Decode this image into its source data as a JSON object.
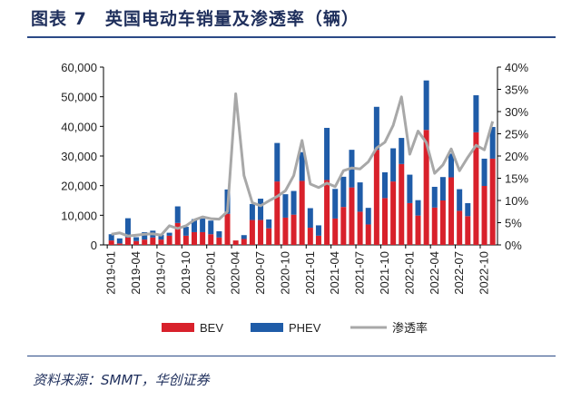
{
  "title": "图表 7　英国电动车销量及渗透率（辆）",
  "source": "资料来源：SMMT，华创证券",
  "colors": {
    "BEV": "#d8212b",
    "PHEV": "#1f5ca8",
    "rate": "#a8a8a8"
  },
  "chart_data": {
    "type": "bar",
    "stacked": true,
    "title": "英国电动车销量及渗透率（辆）",
    "x": [
      "2019-01",
      "2019-02",
      "2019-03",
      "2019-04",
      "2019-05",
      "2019-06",
      "2019-07",
      "2019-08",
      "2019-09",
      "2019-10",
      "2019-11",
      "2019-12",
      "2020-01",
      "2020-02",
      "2020-03",
      "2020-04",
      "2020-05",
      "2020-06",
      "2020-07",
      "2020-08",
      "2020-09",
      "2020-10",
      "2020-11",
      "2020-12",
      "2021-01",
      "2021-02",
      "2021-03",
      "2021-04",
      "2021-05",
      "2021-06",
      "2021-07",
      "2021-08",
      "2021-09",
      "2021-10",
      "2021-11",
      "2021-12",
      "2022-01",
      "2022-02",
      "2022-03",
      "2022-04",
      "2022-05",
      "2022-06",
      "2022-07",
      "2022-08",
      "2022-09",
      "2022-10",
      "2022-11"
    ],
    "x_tick_labels": [
      "2019-01",
      "2019-04",
      "2019-07",
      "2019-10",
      "2020-01",
      "2020-04",
      "2020-07",
      "2020-10",
      "2021-01",
      "2021-04",
      "2021-07",
      "2021-10",
      "2022-01",
      "2022-04",
      "2022-07",
      "2022-10"
    ],
    "series": [
      {
        "name": "BEV",
        "axis": "left",
        "values": [
          1500,
          500,
          2500,
          1300,
          1800,
          2500,
          1800,
          3100,
          7400,
          3100,
          4300,
          4300,
          3600,
          2500,
          10500,
          1500,
          2000,
          8400,
          8400,
          5600,
          21400,
          9200,
          10200,
          21600,
          5800,
          3100,
          21900,
          8900,
          12800,
          19400,
          11200,
          6900,
          32100,
          15800,
          21400,
          27300,
          14100,
          9900,
          38800,
          12600,
          15000,
          22800,
          11500,
          9700,
          38000,
          19900,
          29100
        ]
      },
      {
        "name": "PHEV",
        "axis": "left",
        "values": [
          2100,
          1700,
          6500,
          1300,
          2500,
          2300,
          1600,
          1000,
          5600,
          3000,
          4400,
          4600,
          4600,
          2100,
          8200,
          0,
          1300,
          5400,
          7200,
          3000,
          13000,
          7900,
          8000,
          9700,
          6600,
          3500,
          17600,
          10000,
          10200,
          12700,
          9900,
          5600,
          14500,
          8700,
          11200,
          8800,
          9600,
          5200,
          16700,
          7000,
          7900,
          8000,
          7300,
          4400,
          12500,
          9200,
          10700
        ]
      },
      {
        "name": "渗透率",
        "type": "line",
        "axis": "right",
        "values": [
          2.4,
          2.7,
          2.0,
          2.2,
          2.4,
          2.5,
          2.2,
          4.3,
          3.7,
          4.3,
          5.6,
          6.3,
          5.9,
          5.8,
          7.5,
          34,
          15.6,
          9.5,
          8.8,
          9.9,
          10.9,
          12.2,
          15.6,
          23.5,
          13.7,
          12.9,
          13.9,
          13.1,
          16.7,
          17.3,
          17.1,
          18.7,
          21.8,
          23.1,
          26.9,
          33.3,
          20.4,
          25.6,
          23.0,
          16.1,
          18.0,
          21.6,
          16.7,
          19.7,
          22.4,
          21.4,
          27.8
        ]
      }
    ],
    "ylim": [
      0,
      60000
    ],
    "y_ticks": [
      "0",
      "10,000",
      "20,000",
      "30,000",
      "40,000",
      "50,000",
      "60,000"
    ],
    "y2lim": [
      0,
      40
    ],
    "y2_ticks": [
      "0%",
      "5%",
      "10%",
      "15%",
      "20%",
      "25%",
      "30%",
      "35%",
      "40%"
    ],
    "legend": {
      "position": "bottom",
      "entries": [
        "BEV",
        "PHEV",
        "渗透率"
      ]
    }
  }
}
